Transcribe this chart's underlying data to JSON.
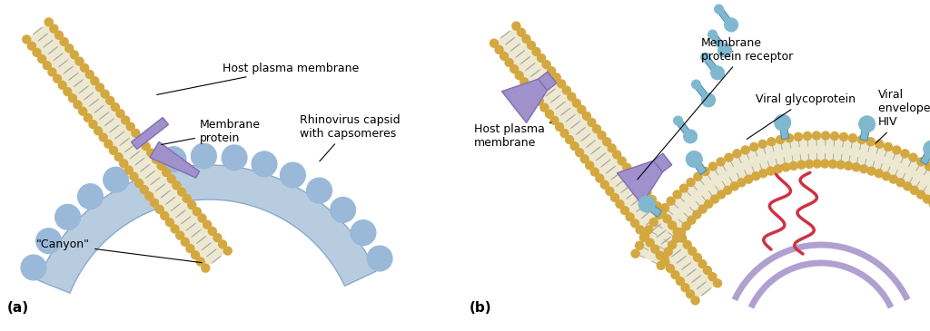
{
  "bg_color": "#ffffff",
  "lipid_head_color": "#d4a840",
  "lipid_tail_color": "#e8dfa8",
  "lipid_inner_color": "#f0ead8",
  "protein_color": "#a090cc",
  "protein_edge": "#8070b0",
  "capsid_light": "#b8cce0",
  "capsid_mid": "#9ab8d8",
  "capsid_dark": "#88aacb",
  "rna_color": "#cc3344",
  "glyco_color": "#80b8d0",
  "glyco_edge": "#5090b0",
  "purple_arc_color": "#b0a0d0",
  "label_fontsize": 11,
  "ann_fontsize": 9,
  "label_a": "(a)",
  "label_b": "(b)",
  "ann_host_membrane_a": "Host plasma membrane",
  "ann_membrane_protein": "Membrane\nprotein",
  "ann_rhinovirus": "Rhinovirus capsid\nwith capsomeres",
  "ann_canyon": "\"Canyon\"",
  "ann_host_membrane_b": "Host plasma\nmembrane",
  "ann_membrane_receptor": "Membrane\nprotein receptor",
  "ann_glycoprotein": "Viral glycoprotein",
  "ann_viral_envelope": "Viral\nenvelope of\nHIV"
}
